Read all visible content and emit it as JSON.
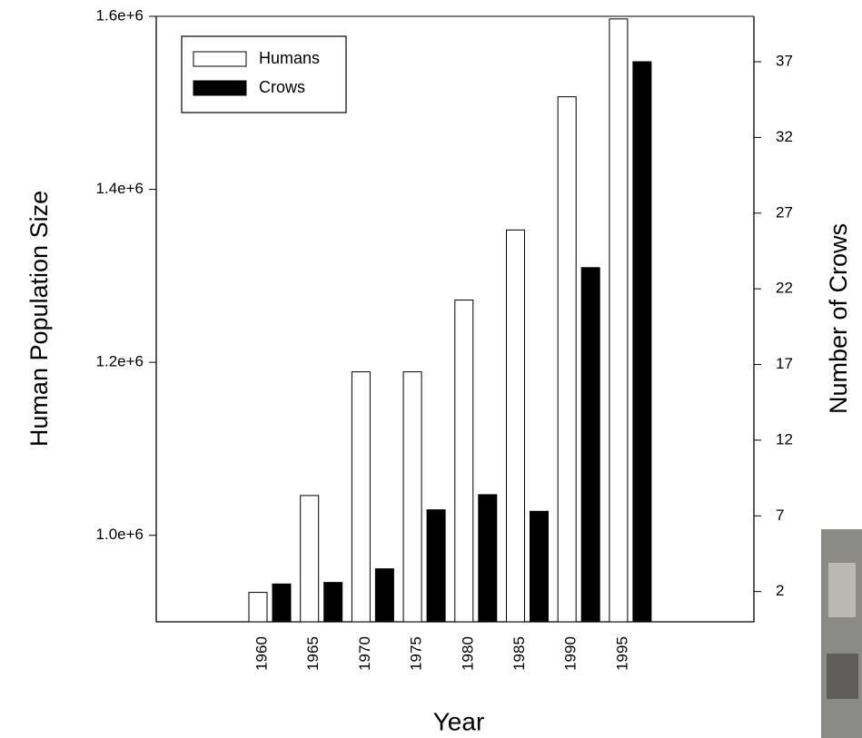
{
  "chart_data": {
    "type": "bar",
    "categories": [
      "1960",
      "1965",
      "1970",
      "1975",
      "1980",
      "1985",
      "1990",
      "1995"
    ],
    "series": [
      {
        "name": "Humans",
        "color": "#ffffff",
        "values": [
          934000,
          1046000,
          1189000,
          1189000,
          1272000,
          1353000,
          1507000,
          1597000
        ]
      },
      {
        "name": "Crows",
        "color": "#000000",
        "axis": "y2",
        "values": [
          2.5,
          2.6,
          3.5,
          7.4,
          8.4,
          7.3,
          23.4,
          37
        ]
      }
    ],
    "xlabel": "Year",
    "ylabel": "Human Population Size",
    "y2label": "Number of Crows",
    "ylim": [
      900000,
      1600000
    ],
    "yticks": [
      {
        "value": 1000000,
        "label": "1.0e+6"
      },
      {
        "value": 1200000,
        "label": "1.2e+6"
      },
      {
        "value": 1400000,
        "label": "1.4e+6"
      },
      {
        "value": 1600000,
        "label": "1.6e+6"
      }
    ],
    "y2lim": [
      0,
      40
    ],
    "y2ticks": [
      2,
      7,
      12,
      17,
      22,
      27,
      32,
      37
    ],
    "legend": "upper left"
  }
}
